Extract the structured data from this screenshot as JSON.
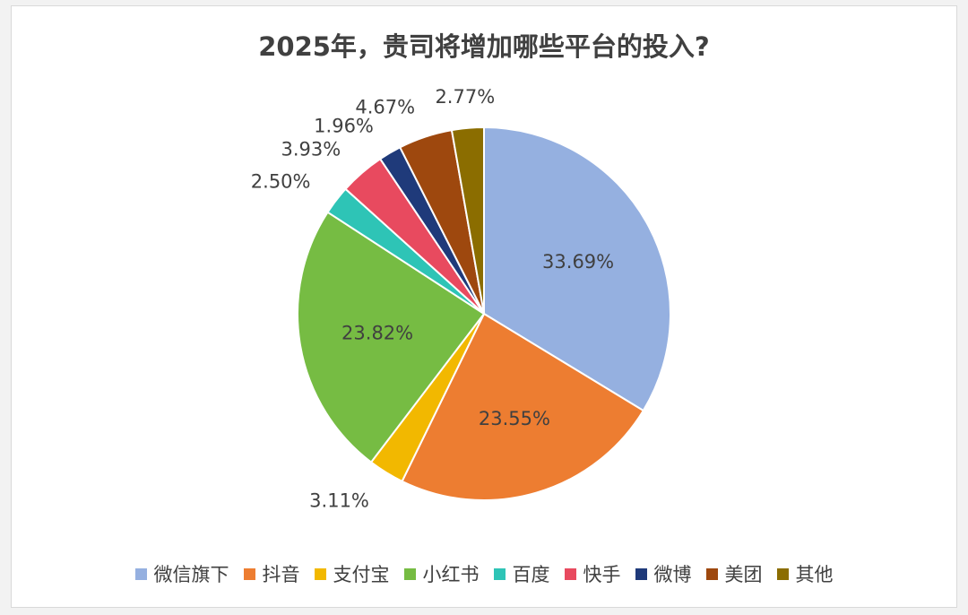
{
  "chart_data": {
    "type": "pie",
    "title": "2025年，贵司将增加哪些平台的投入?",
    "legend_position": "bottom",
    "categories": [
      "微信旗下",
      "抖音",
      "支付宝",
      "小红书",
      "百度",
      "快手",
      "微博",
      "美团",
      "其他"
    ],
    "values": [
      33.69,
      23.55,
      3.11,
      23.82,
      2.5,
      3.93,
      1.96,
      4.67,
      2.77
    ],
    "data_labels": [
      "33.69%",
      "23.55%",
      "3.11%",
      "23.82%",
      "2.50%",
      "3.93%",
      "1.96%",
      "4.67%",
      "2.77%"
    ],
    "colors": [
      "#95b0e0",
      "#ed7d31",
      "#f2b800",
      "#76bc43",
      "#2ec4b6",
      "#e84a5f",
      "#1f3a7a",
      "#9e480e",
      "#8b6d00"
    ]
  }
}
